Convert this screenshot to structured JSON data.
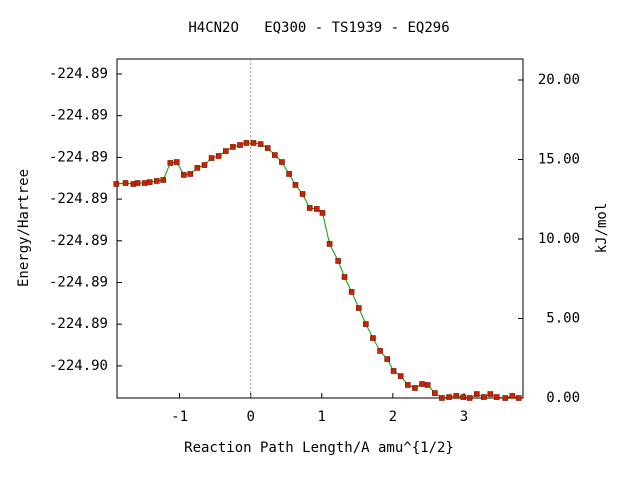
{
  "chart_data": {
    "type": "line",
    "title": "H4CN2O   EQ300 - TS1939 - EQ296",
    "xlabel": "Reaction Path Length/A amu^{1/2}",
    "ylabel": "Energy/Hartree",
    "y2label": "kJ/mol",
    "xlim": [
      -1.88,
      3.83
    ],
    "xticks": [
      -1,
      0,
      1,
      2,
      3
    ],
    "ylim": [
      -224.90077,
      -224.89264
    ],
    "yticks": [
      {
        "value": -224.9,
        "label": "-224.90"
      },
      {
        "value": -224.899,
        "label": "-224.89"
      },
      {
        "value": -224.898,
        "label": "-224.89"
      },
      {
        "value": -224.897,
        "label": "-224.89"
      },
      {
        "value": -224.896,
        "label": "-224.89"
      },
      {
        "value": -224.895,
        "label": "-224.89"
      },
      {
        "value": -224.894,
        "label": "-224.89"
      },
      {
        "value": -224.893,
        "label": "-224.89"
      }
    ],
    "y2lim": [
      0,
      21.32
    ],
    "y2ticks": [
      {
        "value": 0,
        "label": "0.00"
      },
      {
        "value": 5,
        "label": "5.00"
      },
      {
        "value": 10,
        "label": "10.00"
      },
      {
        "value": 15,
        "label": "15.00"
      },
      {
        "value": 20,
        "label": "20.00"
      }
    ],
    "series": [
      {
        "axis": "y2",
        "color": "#00a000",
        "marker_color": "#cc2200",
        "x": [
          -1.89,
          -1.76,
          -1.65,
          -1.59,
          -1.49,
          -1.42,
          -1.32,
          -1.23,
          -1.13,
          -1.04,
          -0.94,
          -0.85,
          -0.75,
          -0.65,
          -0.55,
          -0.45,
          -0.35,
          -0.25,
          -0.15,
          -0.06,
          0.04,
          0.14,
          0.24,
          0.34,
          0.44,
          0.54,
          0.63,
          0.73,
          0.83,
          0.93,
          1.01,
          1.11,
          1.23,
          1.32,
          1.42,
          1.52,
          1.62,
          1.72,
          1.82,
          1.92,
          2.01,
          2.11,
          2.21,
          2.31,
          2.41,
          2.49,
          2.59,
          2.69,
          2.79,
          2.89,
          2.99,
          3.08,
          3.18,
          3.28,
          3.37,
          3.46,
          3.58,
          3.68,
          3.77
        ],
        "values": [
          13.46,
          13.52,
          13.46,
          13.52,
          13.52,
          13.58,
          13.65,
          13.71,
          14.78,
          14.84,
          14.03,
          14.09,
          14.47,
          14.65,
          15.09,
          15.22,
          15.53,
          15.79,
          15.91,
          16.04,
          16.04,
          15.97,
          15.72,
          15.28,
          14.84,
          14.09,
          13.4,
          12.83,
          11.95,
          11.89,
          11.64,
          9.69,
          8.62,
          7.61,
          6.67,
          5.66,
          4.65,
          3.77,
          2.96,
          2.45,
          1.7,
          1.38,
          0.82,
          0.63,
          0.88,
          0.82,
          0.31,
          0,
          0.06,
          0.13,
          0.06,
          0,
          0.25,
          0.06,
          0.25,
          0.06,
          0,
          0.13,
          0
        ]
      }
    ]
  }
}
